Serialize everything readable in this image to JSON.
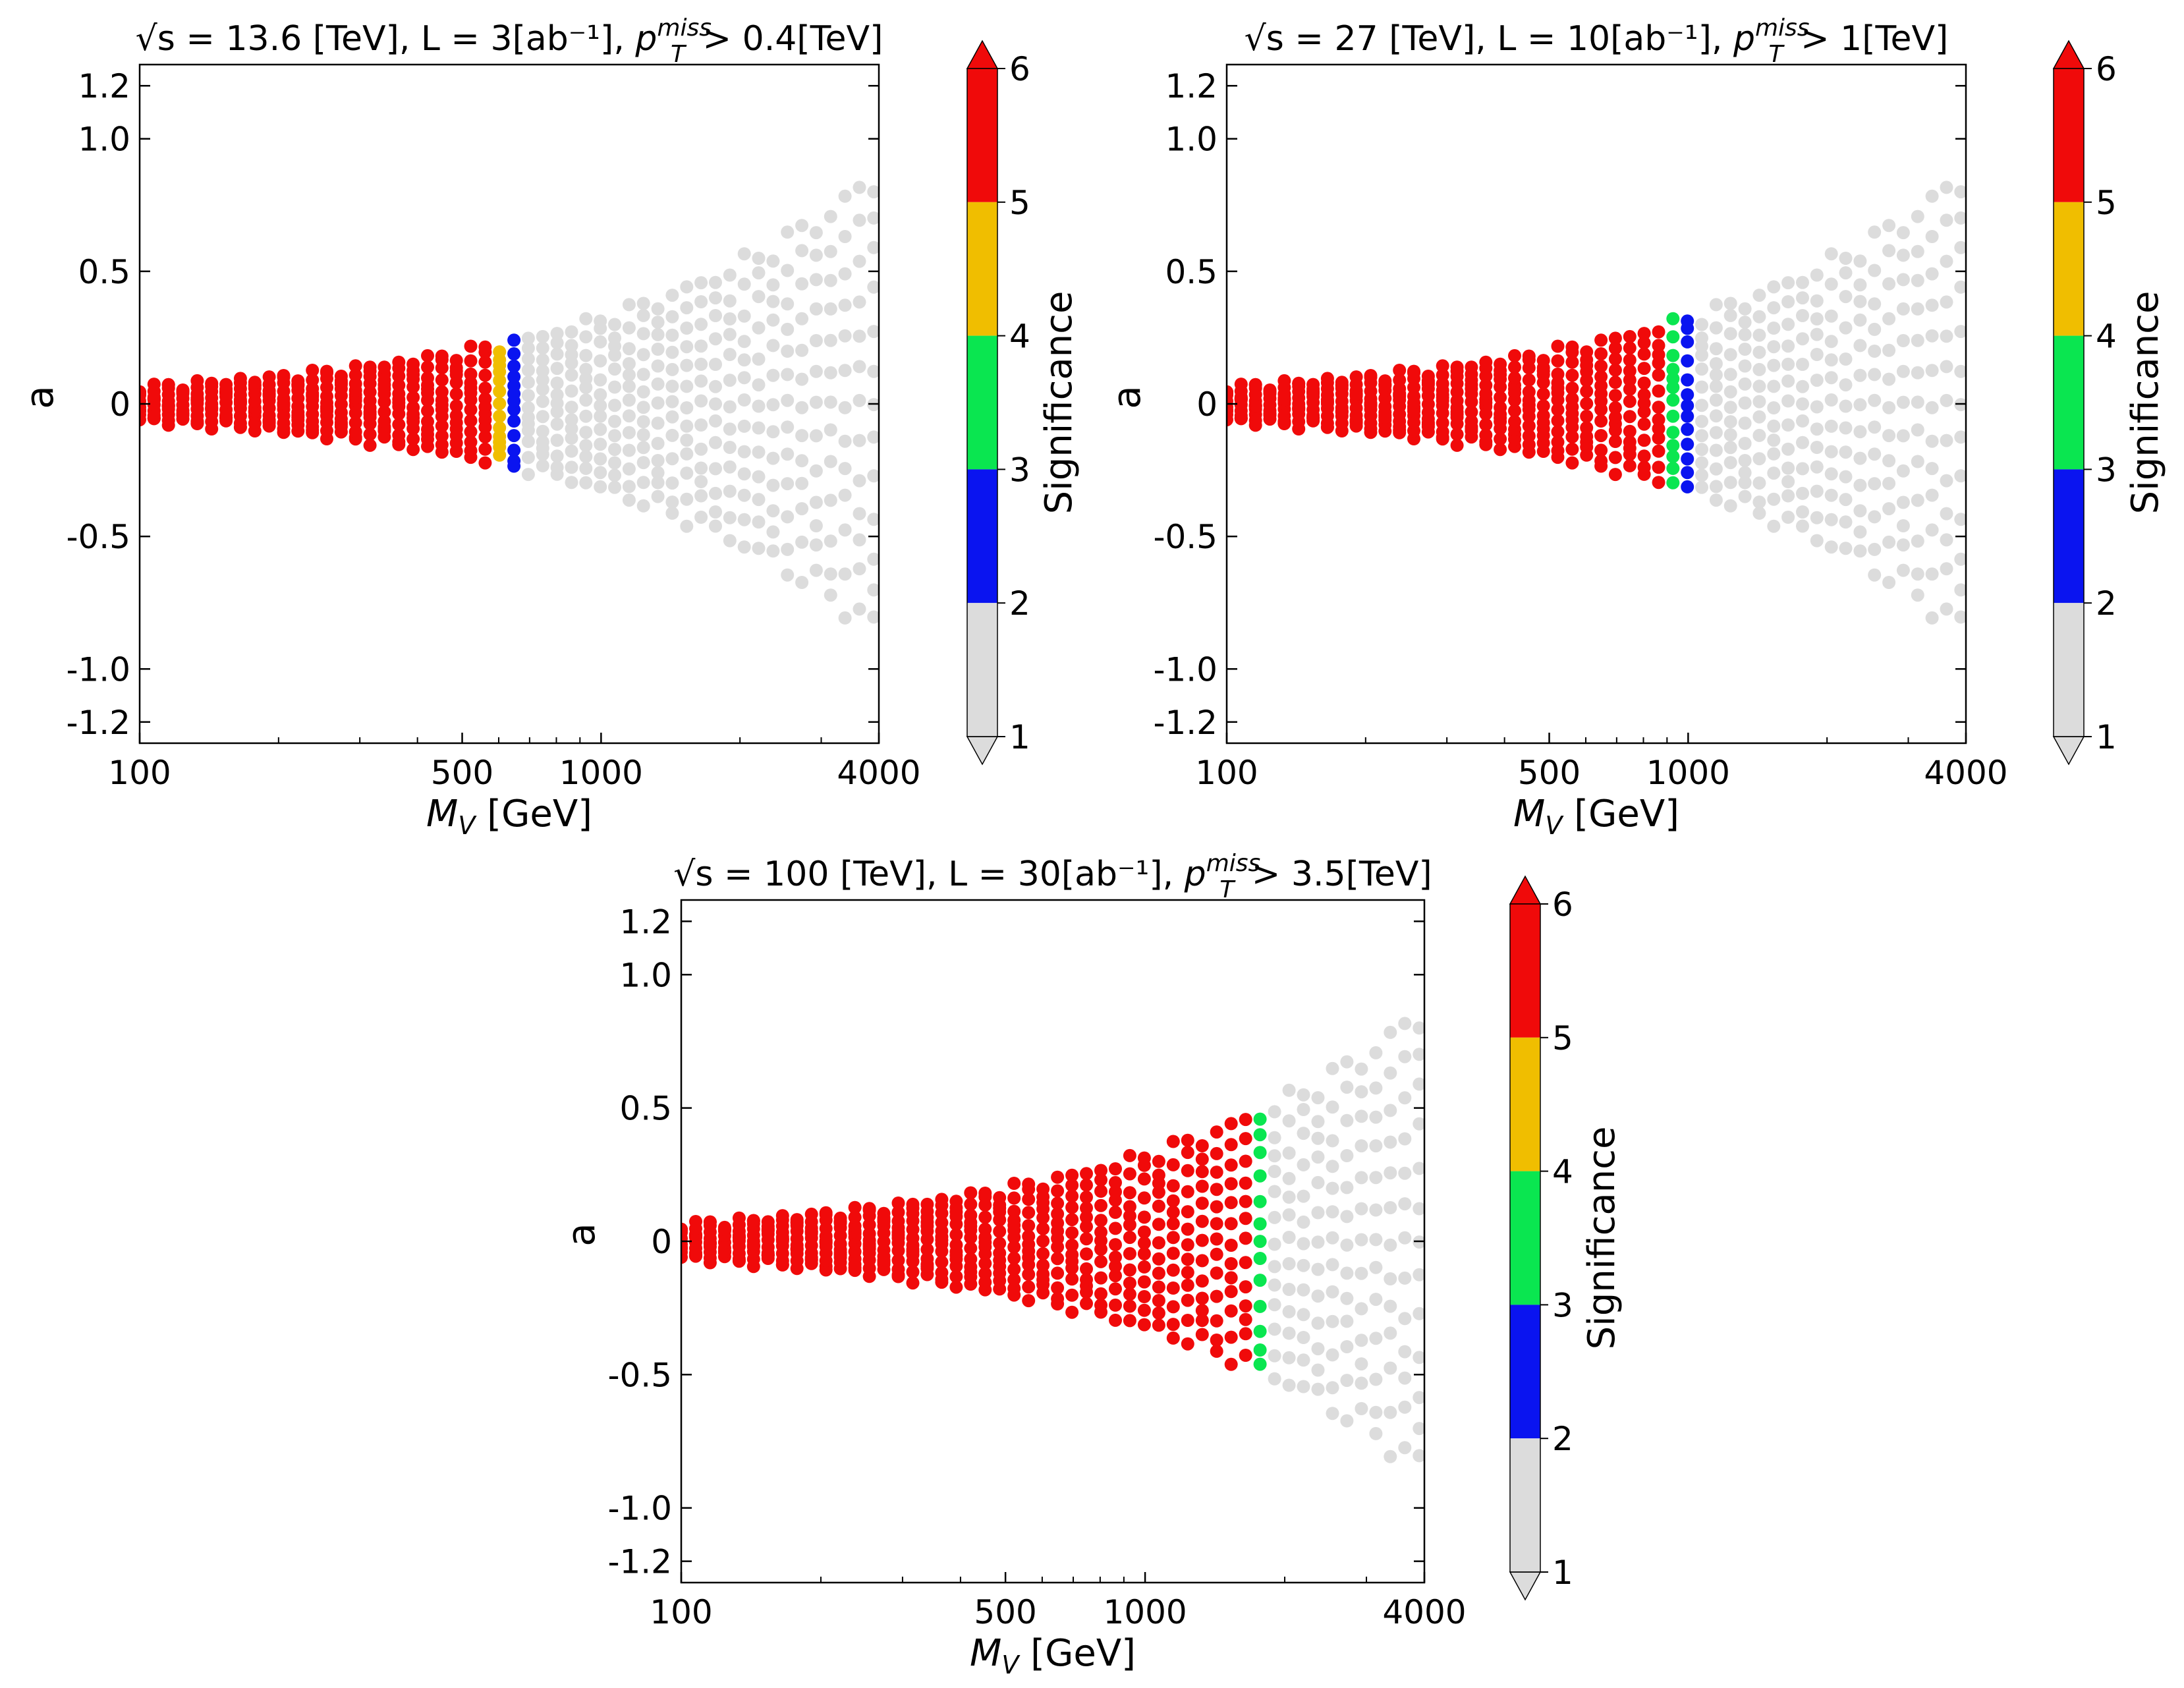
{
  "chart_data": [
    {
      "type": "scatter",
      "title_parts": {
        "pre": "√s = ",
        "energy": "13.6",
        "mid": " [TeV], L = ",
        "lumi": "3",
        "lumi_unit": "[ab⁻¹], ",
        "pt": "p",
        "pt_sup": "miss",
        "pt_sub": "T",
        "cut": " > 0.4[TeV]"
      },
      "xlabel": "M_V [GeV]",
      "xlabel_main": "M",
      "xlabel_sub": "V",
      "xlabel_unit": " [GeV]",
      "ylabel": "a",
      "xscale": "log",
      "xlim": [
        100,
        4000
      ],
      "ylim": [
        -1.28,
        1.28
      ],
      "xticks": [
        100,
        500,
        1000,
        4000
      ],
      "xtick_labels": [
        "100",
        "500",
        "1000",
        "4000"
      ],
      "yticks": [
        1.2,
        1.0,
        0.5,
        0,
        -0.5,
        -1.0,
        -1.2
      ],
      "ytick_labels": [
        "1.2",
        "1.0",
        "0.5",
        "0",
        "-0.5",
        "-1.0",
        "-1.2"
      ],
      "colorbar_label": "Significance",
      "colorbar_ticks": [
        "6",
        "5",
        "4",
        "3",
        "2",
        "1"
      ],
      "grid": false,
      "region_summary": {
        "sig_above_5_until_MV_GeV": 600,
        "transition_end_MV_GeV": 680,
        "gray_until_MV_GeV": 3900
      }
    },
    {
      "type": "scatter",
      "title_parts": {
        "pre": "√s = ",
        "energy": "27",
        "mid": " [TeV], L = ",
        "lumi": "10",
        "lumi_unit": "[ab⁻¹], ",
        "pt": "p",
        "pt_sup": "miss",
        "pt_sub": "T",
        "cut": " > 1[TeV]"
      },
      "xlabel": "M_V [GeV]",
      "xlabel_main": "M",
      "xlabel_sub": "V",
      "xlabel_unit": " [GeV]",
      "ylabel": "a",
      "xscale": "log",
      "xlim": [
        100,
        4000
      ],
      "ylim": [
        -1.28,
        1.28
      ],
      "xticks": [
        100,
        500,
        1000,
        4000
      ],
      "xtick_labels": [
        "100",
        "500",
        "1000",
        "4000"
      ],
      "yticks": [
        1.2,
        1.0,
        0.5,
        0,
        -0.5,
        -1.0,
        -1.2
      ],
      "ytick_labels": [
        "1.2",
        "1.0",
        "0.5",
        "0",
        "-0.5",
        "-1.0",
        "-1.2"
      ],
      "colorbar_label": "Significance",
      "colorbar_ticks": [
        "6",
        "5",
        "4",
        "3",
        "2",
        "1"
      ],
      "grid": false,
      "region_summary": {
        "sig_above_5_until_MV_GeV": 900,
        "transition_end_MV_GeV": 1010,
        "gray_until_MV_GeV": 3900
      }
    },
    {
      "type": "scatter",
      "title_parts": {
        "pre": "√s = ",
        "energy": "100",
        "mid": " [TeV], L = ",
        "lumi": "30",
        "lumi_unit": "[ab⁻¹], ",
        "pt": "p",
        "pt_sup": "miss",
        "pt_sub": "T",
        "cut": " > 3.5[TeV]"
      },
      "xlabel": "M_V [GeV]",
      "xlabel_main": "M",
      "xlabel_sub": "V",
      "xlabel_unit": " [GeV]",
      "ylabel": "a",
      "xscale": "log",
      "xlim": [
        100,
        4000
      ],
      "ylim": [
        -1.28,
        1.28
      ],
      "xticks": [
        100,
        500,
        1000,
        4000
      ],
      "xtick_labels": [
        "100",
        "500",
        "1000",
        "4000"
      ],
      "yticks": [
        1.2,
        1.0,
        0.5,
        0,
        -0.5,
        -1.0,
        -1.2
      ],
      "ytick_labels": [
        "1.2",
        "1.0",
        "0.5",
        "0",
        "-0.5",
        "-1.0",
        "-1.2"
      ],
      "colorbar_label": "Significance",
      "colorbar_ticks": [
        "6",
        "5",
        "4",
        "3",
        "2",
        "1"
      ],
      "grid": false,
      "region_summary": {
        "sig_above_5_until_MV_GeV": 1700,
        "transition_end_MV_GeV": 1900,
        "gray_until_MV_GeV": 3900
      }
    }
  ],
  "colors": {
    "gray_1_2": "#dcdcdc",
    "blue_2_3": "#0a14f0",
    "green_3_4": "#0ae650",
    "yellow_4_5": "#f0be00",
    "red_5_6": "#f00a0a"
  },
  "point_model": {
    "boundary_a_at_MV_100": 0.06,
    "boundary_exponent": 0.72,
    "n_curves": 13,
    "points_per_curve": 52
  }
}
